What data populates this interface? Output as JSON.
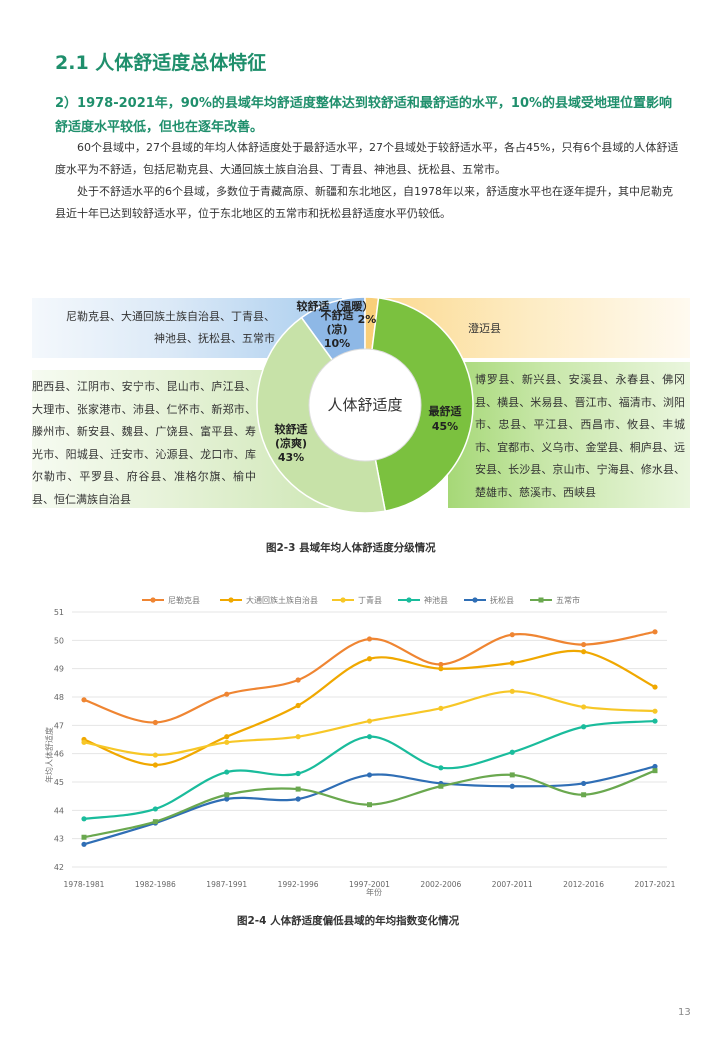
{
  "section": {
    "title": "2.1 人体舒适度总体特征",
    "subtitle": "2）1978-2021年，90%的县域年均舒适度整体达到较舒适和最舒适的水平，10%的县域受地理位置影响舒适度水平较低，但也在逐年改善。",
    "para1": "60个县域中，27个县域的年均人体舒适度处于最舒适水平，27个县域处于较舒适水平，各占45%，只有6个县域的人体舒适度水平为不舒适，包括尼勒克县、大通回族土族自治县、丁青县、神池县、抚松县、五常市。",
    "para2": "处于不舒适水平的6个县域，多数位于青藏高原、新疆和东北地区，自1978年以来，舒适度水平也在逐年提升，其中尼勒克县近十年已达到较舒适水平，位于东北地区的五常市和抚松县舒适度水平仍较低。"
  },
  "figure1": {
    "caption": "图2-3 县域年均人体舒适度分级情况",
    "center_label": "人体舒适度",
    "label_uncomf_1": "不舒适",
    "label_uncomf_2": "(凉)",
    "label_uncomf_pct": "10%",
    "label_warm_1": "较舒适（温暖）",
    "label_warm_pct": "2%",
    "label_best_1": "最舒适",
    "label_best_pct": "45%",
    "label_cool_1": "较舒适",
    "label_cool_2": "(凉爽)",
    "label_cool_pct": "43%",
    "list_uncomfortable": "尼勒克县、大通回族土族自治县、丁青县、神池县、抚松县、五常市",
    "list_warm": "澄迈县",
    "list_cool": "肥西县、江阴市、安宁市、昆山市、庐江县、大理市、张家港市、沛县、仁怀市、新郑市、滕州市、新安县、魏县、广饶县、富平县、寿光市、阳城县、迁安市、沁源县、龙口市、库尔勒市、平罗县、府谷县、准格尔旗、榆中县、恒仁满族自治县",
    "list_best": "博罗县、新兴县、安溪县、永春县、佛冈县、横县、米易县、晋江市、福清市、浏阳市、忠县、平江县、西昌市、攸县、丰城市、宜都市、义乌市、金堂县、桐庐县、远安县、长沙县、京山市、宁海县、修水县、楚雄市、慈溪市、西峡县",
    "colors": {
      "uncomfortable": "#8eb8e6",
      "warm": "#f9cf79",
      "best": "#7bc13f",
      "cool": "#c7e2a8"
    }
  },
  "figure2": {
    "caption": "图2-4 人体舒适度偏低县域的年均指数变化情况",
    "page_number": "13"
  },
  "chart_data": {
    "type": "line",
    "title": "",
    "xlabel": "年份",
    "ylabel": "年均人体舒适度",
    "ylim": [
      42,
      51
    ],
    "y_ticks": [
      "42",
      "43",
      "44",
      "45",
      "46",
      "47",
      "48",
      "49",
      "50",
      "51"
    ],
    "categories": [
      "1978-1981",
      "1982-1986",
      "1987-1991",
      "1992-1996",
      "1997-2001",
      "2002-2006",
      "2007-2011",
      "2012-2016",
      "2017-2021"
    ],
    "series": [
      {
        "name": "尼勒克县",
        "color": "#ef8532",
        "marker": "circle",
        "values": [
          47.9,
          47.1,
          48.1,
          48.6,
          50.05,
          49.15,
          50.2,
          49.85,
          50.3
        ]
      },
      {
        "name": "大通回族土族自治县",
        "color": "#f0a800",
        "marker": "circle",
        "values": [
          46.5,
          45.6,
          46.6,
          47.7,
          49.35,
          49.0,
          49.2,
          49.6,
          48.35
        ]
      },
      {
        "name": "丁青县",
        "color": "#f7c727",
        "marker": "circle",
        "values": [
          46.4,
          45.95,
          46.4,
          46.6,
          47.15,
          47.6,
          48.2,
          47.65,
          47.5
        ]
      },
      {
        "name": "神池县",
        "color": "#1abc9c",
        "marker": "circle",
        "values": [
          43.7,
          44.05,
          45.35,
          45.3,
          46.6,
          45.5,
          46.05,
          46.95,
          47.15
        ]
      },
      {
        "name": "抚松县",
        "color": "#2f6eb5",
        "marker": "circle",
        "values": [
          42.8,
          43.55,
          44.4,
          44.4,
          45.25,
          44.95,
          44.85,
          44.95,
          45.55
        ]
      },
      {
        "name": "五常市",
        "color": "#6aa84f",
        "marker": "square",
        "values": [
          43.05,
          43.6,
          44.55,
          44.75,
          44.2,
          44.85,
          45.25,
          44.55,
          45.4
        ]
      }
    ],
    "legend_position": "top",
    "grid": true
  }
}
